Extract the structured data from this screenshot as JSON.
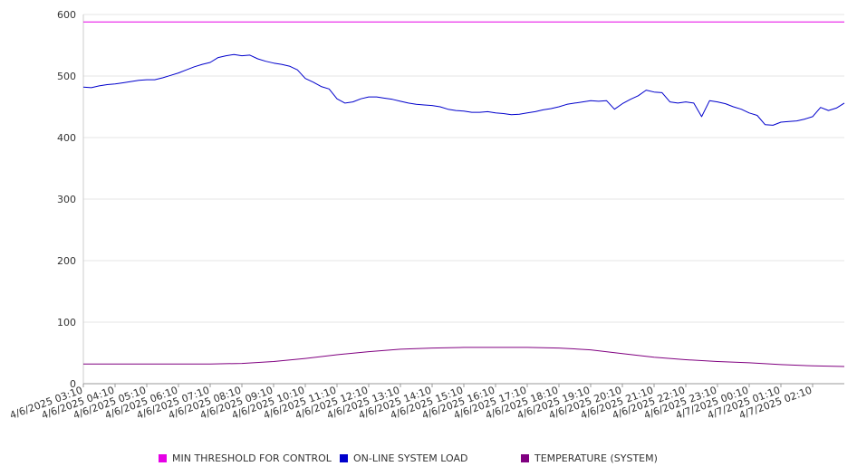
{
  "chart_data": {
    "type": "line",
    "ylim": [
      0,
      600
    ],
    "y_ticks": [
      0,
      100,
      200,
      300,
      400,
      500,
      600
    ],
    "x_ticks": [
      "4/6/2025 03:10",
      "4/6/2025 04:10",
      "4/6/2025 05:10",
      "4/6/2025 06:10",
      "4/6/2025 07:10",
      "4/6/2025 08:10",
      "4/6/2025 09:10",
      "4/6/2025 10:10",
      "4/6/2025 11:10",
      "4/6/2025 12:10",
      "4/6/2025 13:10",
      "4/6/2025 14:10",
      "4/6/2025 15:10",
      "4/6/2025 16:10",
      "4/6/2025 17:10",
      "4/6/2025 18:10",
      "4/6/2025 19:10",
      "4/6/2025 20:10",
      "4/6/2025 21:10",
      "4/6/2025 22:10",
      "4/6/2025 23:10",
      "4/7/2025 00:10",
      "4/7/2025 01:10",
      "4/7/2025 02:10"
    ],
    "x_range": [
      "4/6/2025 03:10",
      "4/7/2025 03:10"
    ],
    "grid": "horizontal",
    "legend_position": "bottom",
    "series": [
      {
        "name": "MIN THRESHOLD FOR CONTROL",
        "color": "#e600e6",
        "points": [
          [
            "4/6/2025 03:10",
            588
          ],
          [
            "4/7/2025 03:10",
            588
          ]
        ]
      },
      {
        "name": "ON-LINE SYSTEM LOAD",
        "color": "#0000cc",
        "points": [
          [
            "4/6/2025 03:10",
            482
          ],
          [
            "4/6/2025 03:25",
            481
          ],
          [
            "4/6/2025 03:40",
            484
          ],
          [
            "4/6/2025 03:55",
            486
          ],
          [
            "4/6/2025 04:10",
            487
          ],
          [
            "4/6/2025 04:25",
            489
          ],
          [
            "4/6/2025 04:40",
            491
          ],
          [
            "4/6/2025 04:55",
            493
          ],
          [
            "4/6/2025 05:10",
            494
          ],
          [
            "4/6/2025 05:25",
            494
          ],
          [
            "4/6/2025 05:40",
            497
          ],
          [
            "4/6/2025 05:55",
            501
          ],
          [
            "4/6/2025 06:10",
            505
          ],
          [
            "4/6/2025 06:25",
            510
          ],
          [
            "4/6/2025 06:40",
            515
          ],
          [
            "4/6/2025 06:55",
            519
          ],
          [
            "4/6/2025 07:10",
            522
          ],
          [
            "4/6/2025 07:25",
            530
          ],
          [
            "4/6/2025 07:40",
            533
          ],
          [
            "4/6/2025 07:55",
            535
          ],
          [
            "4/6/2025 08:10",
            533
          ],
          [
            "4/6/2025 08:25",
            534
          ],
          [
            "4/6/2025 08:40",
            528
          ],
          [
            "4/6/2025 08:55",
            524
          ],
          [
            "4/6/2025 09:10",
            521
          ],
          [
            "4/6/2025 09:25",
            519
          ],
          [
            "4/6/2025 09:40",
            516
          ],
          [
            "4/6/2025 09:55",
            510
          ],
          [
            "4/6/2025 10:10",
            496
          ],
          [
            "4/6/2025 10:25",
            490
          ],
          [
            "4/6/2025 10:40",
            483
          ],
          [
            "4/6/2025 10:55",
            479
          ],
          [
            "4/6/2025 11:10",
            463
          ],
          [
            "4/6/2025 11:25",
            456
          ],
          [
            "4/6/2025 11:40",
            458
          ],
          [
            "4/6/2025 11:55",
            463
          ],
          [
            "4/6/2025 12:10",
            466
          ],
          [
            "4/6/2025 12:25",
            466
          ],
          [
            "4/6/2025 12:40",
            464
          ],
          [
            "4/6/2025 12:55",
            462
          ],
          [
            "4/6/2025 13:10",
            459
          ],
          [
            "4/6/2025 13:25",
            456
          ],
          [
            "4/6/2025 13:40",
            454
          ],
          [
            "4/6/2025 13:55",
            453
          ],
          [
            "4/6/2025 14:10",
            452
          ],
          [
            "4/6/2025 14:25",
            450
          ],
          [
            "4/6/2025 14:40",
            446
          ],
          [
            "4/6/2025 14:55",
            444
          ],
          [
            "4/6/2025 15:10",
            443
          ],
          [
            "4/6/2025 15:25",
            441
          ],
          [
            "4/6/2025 15:40",
            441
          ],
          [
            "4/6/2025 15:55",
            442
          ],
          [
            "4/6/2025 16:10",
            440
          ],
          [
            "4/6/2025 16:25",
            439
          ],
          [
            "4/6/2025 16:40",
            437
          ],
          [
            "4/6/2025 16:55",
            438
          ],
          [
            "4/6/2025 17:10",
            440
          ],
          [
            "4/6/2025 17:25",
            442
          ],
          [
            "4/6/2025 17:40",
            445
          ],
          [
            "4/6/2025 17:55",
            447
          ],
          [
            "4/6/2025 18:10",
            450
          ],
          [
            "4/6/2025 18:25",
            454
          ],
          [
            "4/6/2025 18:40",
            456
          ],
          [
            "4/6/2025 18:55",
            458
          ],
          [
            "4/6/2025 19:10",
            460
          ],
          [
            "4/6/2025 19:25",
            459
          ],
          [
            "4/6/2025 19:40",
            460
          ],
          [
            "4/6/2025 19:55",
            446
          ],
          [
            "4/6/2025 20:10",
            455
          ],
          [
            "4/6/2025 20:25",
            462
          ],
          [
            "4/6/2025 20:40",
            468
          ],
          [
            "4/6/2025 20:55",
            477
          ],
          [
            "4/6/2025 21:10",
            474
          ],
          [
            "4/6/2025 21:25",
            473
          ],
          [
            "4/6/2025 21:40",
            458
          ],
          [
            "4/6/2025 21:55",
            456
          ],
          [
            "4/6/2025 22:10",
            458
          ],
          [
            "4/6/2025 22:25",
            456
          ],
          [
            "4/6/2025 22:40",
            434
          ],
          [
            "4/6/2025 22:55",
            460
          ],
          [
            "4/6/2025 23:10",
            458
          ],
          [
            "4/6/2025 23:25",
            455
          ],
          [
            "4/6/2025 23:40",
            450
          ],
          [
            "4/6/2025 23:55",
            446
          ],
          [
            "4/7/2025 00:10",
            440
          ],
          [
            "4/7/2025 00:25",
            436
          ],
          [
            "4/7/2025 00:40",
            421
          ],
          [
            "4/7/2025 00:55",
            420
          ],
          [
            "4/7/2025 01:10",
            425
          ],
          [
            "4/7/2025 01:25",
            426
          ],
          [
            "4/7/2025 01:40",
            427
          ],
          [
            "4/7/2025 01:55",
            430
          ],
          [
            "4/7/2025 02:10",
            434
          ],
          [
            "4/7/2025 02:25",
            449
          ],
          [
            "4/7/2025 02:40",
            444
          ],
          [
            "4/7/2025 02:55",
            448
          ],
          [
            "4/7/2025 03:10",
            456
          ]
        ]
      },
      {
        "name": "TEMPERATURE (SYSTEM)",
        "color": "#800080",
        "points": [
          [
            "4/6/2025 03:10",
            32
          ],
          [
            "4/6/2025 04:10",
            32
          ],
          [
            "4/6/2025 05:10",
            32
          ],
          [
            "4/6/2025 06:10",
            32
          ],
          [
            "4/6/2025 07:10",
            32
          ],
          [
            "4/6/2025 08:10",
            33
          ],
          [
            "4/6/2025 09:10",
            36
          ],
          [
            "4/6/2025 10:10",
            41
          ],
          [
            "4/6/2025 11:10",
            47
          ],
          [
            "4/6/2025 12:10",
            52
          ],
          [
            "4/6/2025 13:10",
            56
          ],
          [
            "4/6/2025 14:10",
            58
          ],
          [
            "4/6/2025 15:10",
            59
          ],
          [
            "4/6/2025 16:10",
            59
          ],
          [
            "4/6/2025 17:10",
            59
          ],
          [
            "4/6/2025 18:10",
            58
          ],
          [
            "4/6/2025 19:10",
            55
          ],
          [
            "4/6/2025 20:10",
            49
          ],
          [
            "4/6/2025 21:10",
            43
          ],
          [
            "4/6/2025 22:10",
            39
          ],
          [
            "4/6/2025 23:10",
            36
          ],
          [
            "4/7/2025 00:10",
            34
          ],
          [
            "4/7/2025 01:10",
            31
          ],
          [
            "4/7/2025 02:10",
            29
          ],
          [
            "4/7/2025 03:10",
            28
          ]
        ]
      }
    ]
  }
}
